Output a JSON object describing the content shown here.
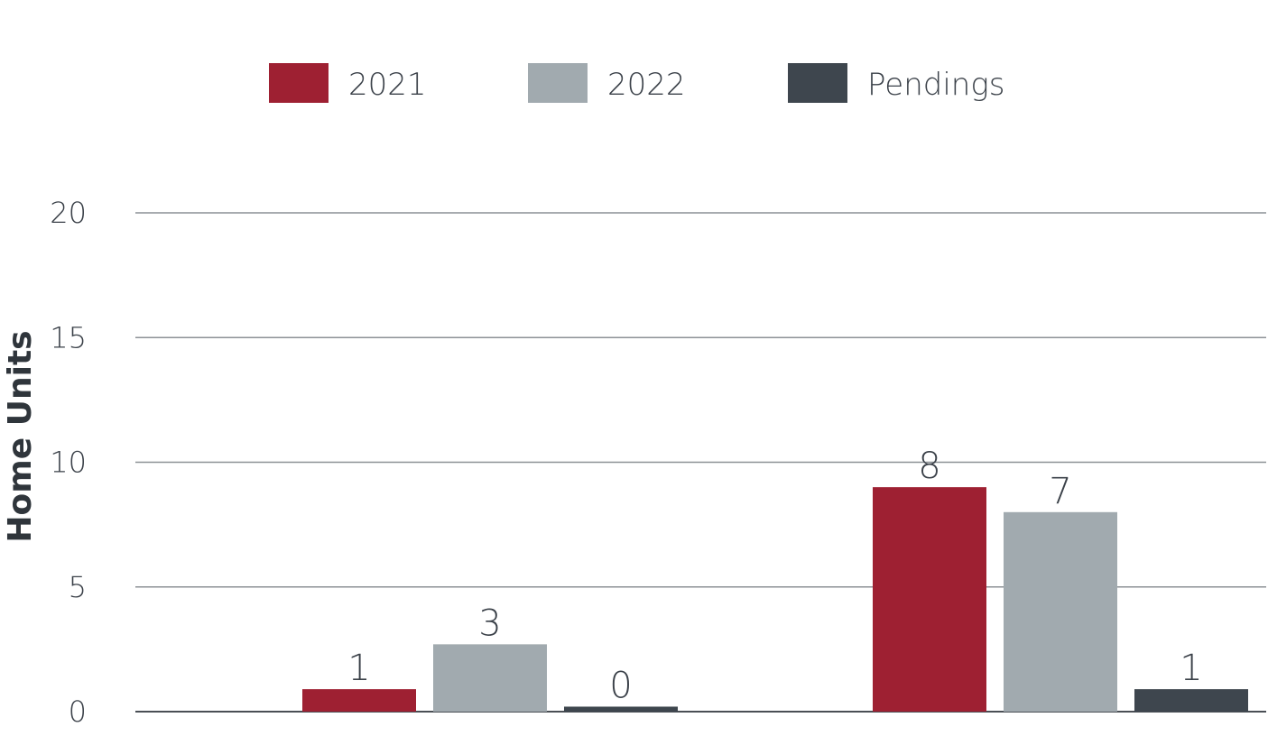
{
  "chart_data": {
    "type": "bar",
    "title": "",
    "xlabel": "",
    "ylabel": "Home Units",
    "ylim": [
      0,
      20
    ],
    "yticks": [
      0,
      5,
      10,
      15,
      20
    ],
    "grid": true,
    "legend_position": "top",
    "categories": [
      "",
      ""
    ],
    "series": [
      {
        "name": "2021",
        "color": "#9e2032",
        "values": [
          1,
          8
        ],
        "bar_heights": [
          0.9,
          9.0
        ]
      },
      {
        "name": "2022",
        "color": "#a1aaaf",
        "values": [
          3,
          7
        ],
        "bar_heights": [
          2.7,
          8.0
        ]
      },
      {
        "name": "Pendings",
        "color": "#3e464e",
        "values": [
          0,
          1
        ],
        "bar_heights": [
          0.2,
          0.9
        ]
      }
    ]
  }
}
